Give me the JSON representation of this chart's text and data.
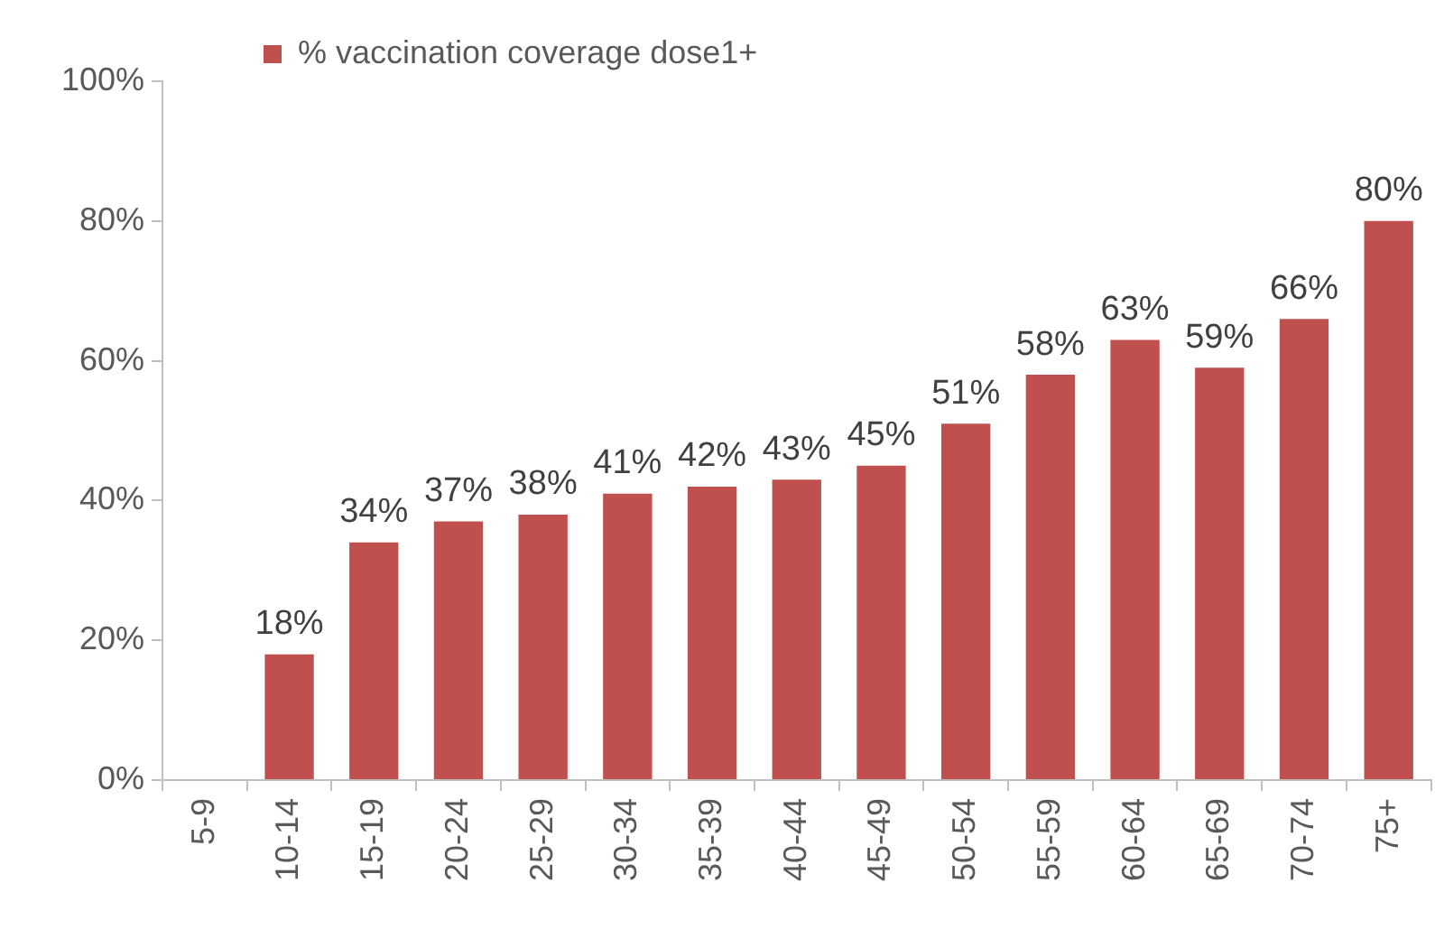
{
  "chart_data": {
    "type": "bar",
    "categories": [
      "5-9",
      "10-14",
      "15-19",
      "20-24",
      "25-29",
      "30-34",
      "35-39",
      "40-44",
      "45-49",
      "50-54",
      "55-59",
      "60-64",
      "65-69",
      "70-74",
      "75+"
    ],
    "series": [
      {
        "name": "% vaccination coverage dose1+",
        "color": "#c0504d",
        "values": [
          null,
          18,
          34,
          37,
          38,
          41,
          42,
          43,
          45,
          51,
          58,
          63,
          59,
          66,
          80
        ],
        "value_labels": [
          null,
          "18%",
          "34%",
          "37%",
          "38%",
          "41%",
          "42%",
          "43%",
          "45%",
          "51%",
          "58%",
          "63%",
          "59%",
          "66%",
          "80%"
        ]
      }
    ],
    "ylim": [
      0,
      100
    ],
    "yticks": [
      {
        "value": 0,
        "label": "0%"
      },
      {
        "value": 20,
        "label": "20%"
      },
      {
        "value": 40,
        "label": "40%"
      },
      {
        "value": 60,
        "label": "60%"
      },
      {
        "value": 80,
        "label": "80%"
      },
      {
        "value": 100,
        "label": "100%"
      }
    ],
    "legend": "top left"
  }
}
